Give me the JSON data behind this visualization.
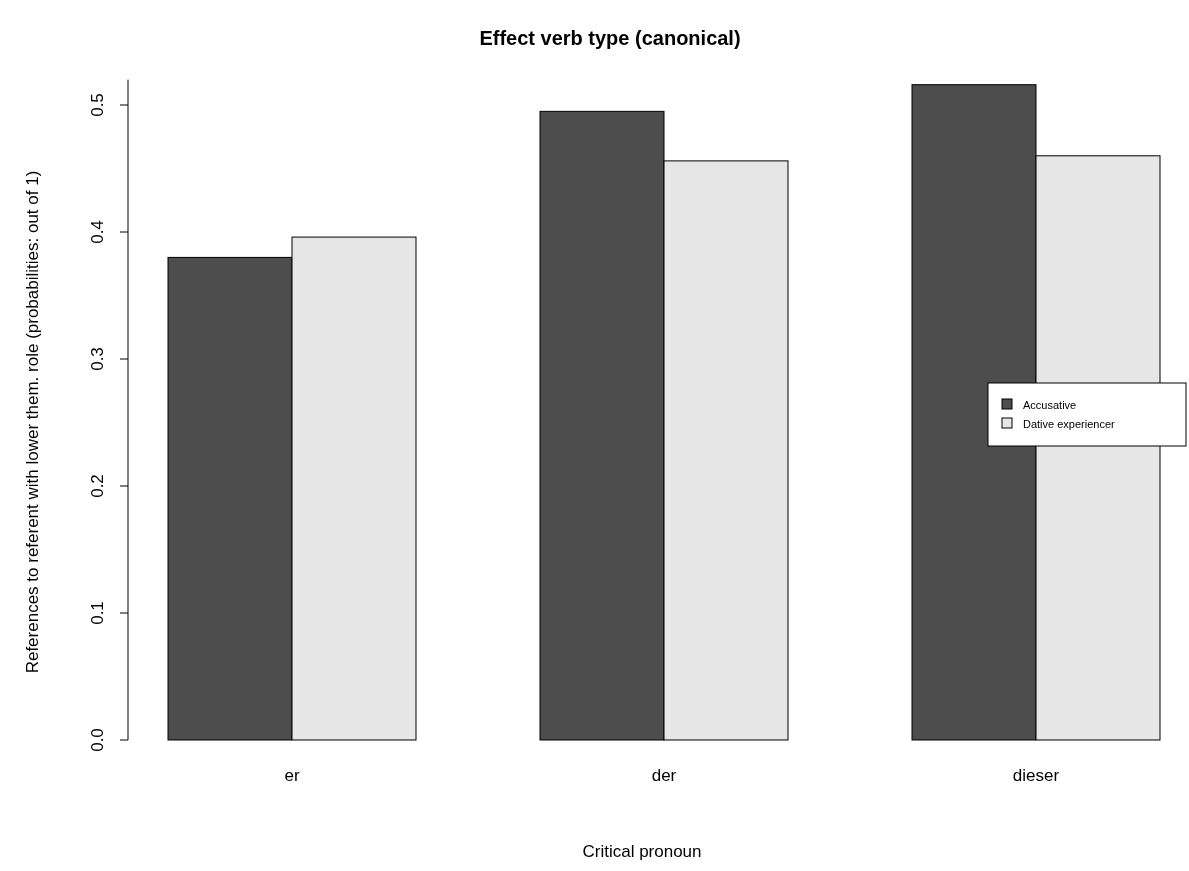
{
  "chart_data": {
    "type": "bar",
    "title": "Effect verb type (canonical)",
    "xlabel": "Critical pronoun",
    "ylabel": "References to referent with lower them. role (probabilities: out of 1)",
    "categories": [
      "er",
      "der",
      "dieser"
    ],
    "series": [
      {
        "name": "Accusative",
        "color": "#4d4d4d",
        "values": [
          0.38,
          0.495,
          0.516
        ]
      },
      {
        "name": "Dative experiencer",
        "color": "#e6e6e6",
        "values": [
          0.396,
          0.456,
          0.46
        ]
      }
    ],
    "ylim": [
      0,
      0.52
    ],
    "yticks": [
      {
        "value": 0,
        "label": "0.0"
      },
      {
        "value": 0.1,
        "label": "0.1"
      },
      {
        "value": 0.2,
        "label": "0.2"
      },
      {
        "value": 0.3,
        "label": "0.3"
      },
      {
        "value": 0.4,
        "label": "0.4"
      },
      {
        "value": 0.5,
        "label": "0.5"
      }
    ],
    "grid": false,
    "legend": "right"
  }
}
